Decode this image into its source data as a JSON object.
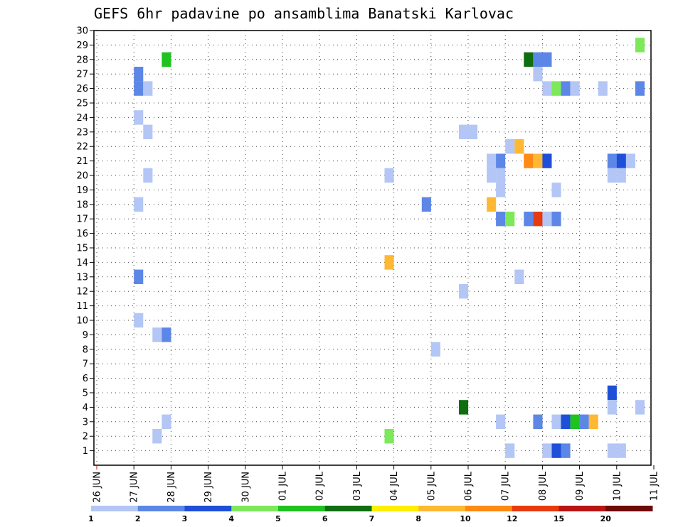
{
  "chart_data": {
    "type": "heatmap",
    "title": "GEFS 6hr padavine po ansamblima Banatski Karlovac",
    "y_ticks": [
      "1",
      "2",
      "3",
      "4",
      "5",
      "6",
      "7",
      "8",
      "9",
      "10",
      "11",
      "12",
      "13",
      "14",
      "15",
      "16",
      "17",
      "18",
      "19",
      "20",
      "21",
      "22",
      "23",
      "24",
      "25",
      "26",
      "27",
      "28",
      "29",
      "30"
    ],
    "x_ticks": [
      "26 JUN",
      "27 JUN",
      "28 JUN",
      "29 JUN",
      "30 JUN",
      "01 JUL",
      "02 JUL",
      "03 JUL",
      "04 JUL",
      "05 JUL",
      "06 JUL",
      "07 JUL",
      "08 JUL",
      "09 JUL",
      "10 JUL",
      "11 JUL"
    ],
    "ylim": [
      0,
      30
    ],
    "grid": true,
    "legend": {
      "placement": "bottom",
      "labels": [
        "1",
        "2",
        "3",
        "4",
        "5",
        "6",
        "7",
        "8",
        "10",
        "12",
        "15",
        "20"
      ],
      "colors": [
        "#b3c6f5",
        "#5c87e6",
        "#1e4fd9",
        "#7de85a",
        "#1fc21f",
        "#0f6e0f",
        "#ffee00",
        "#ffb833",
        "#ff8a14",
        "#e63a0f",
        "#b81414",
        "#6e0a0a"
      ]
    },
    "cell_days": 0.25,
    "cells": [
      {
        "t": "27 JUN 00Z",
        "m": 26,
        "v": 2
      },
      {
        "t": "27 JUN 00Z",
        "m": 27,
        "v": 2
      },
      {
        "t": "27 JUN 06Z",
        "m": 26,
        "v": 1
      },
      {
        "t": "27 JUN 00Z",
        "m": 24,
        "v": 1
      },
      {
        "t": "27 JUN 06Z",
        "m": 23,
        "v": 1
      },
      {
        "t": "27 JUN 06Z",
        "m": 20,
        "v": 1
      },
      {
        "t": "27 JUN 00Z",
        "m": 18,
        "v": 1
      },
      {
        "t": "27 JUN 00Z",
        "m": 13,
        "v": 2
      },
      {
        "t": "27 JUN 00Z",
        "m": 10,
        "v": 1
      },
      {
        "t": "27 JUN 12Z",
        "m": 9,
        "v": 1
      },
      {
        "t": "27 JUN 18Z",
        "m": 9,
        "v": 2
      },
      {
        "t": "27 JUN 18Z",
        "m": 3,
        "v": 1
      },
      {
        "t": "27 JUN 12Z",
        "m": 2,
        "v": 1
      },
      {
        "t": "27 JUN 18Z",
        "m": 28,
        "v": 5
      },
      {
        "t": "03 JUL 18Z",
        "m": 20,
        "v": 1
      },
      {
        "t": "03 JUL 18Z",
        "m": 14,
        "v": 8
      },
      {
        "t": "03 JUL 18Z",
        "m": 2,
        "v": 4
      },
      {
        "t": "04 JUL 18Z",
        "m": 18,
        "v": 2
      },
      {
        "t": "05 JUL 00Z",
        "m": 8,
        "v": 1
      },
      {
        "t": "05 JUL 18Z",
        "m": 23,
        "v": 1
      },
      {
        "t": "06 JUL 00Z",
        "m": 23,
        "v": 1
      },
      {
        "t": "05 JUL 18Z",
        "m": 12,
        "v": 1
      },
      {
        "t": "05 JUL 18Z",
        "m": 4,
        "v": 6
      },
      {
        "t": "06 JUL 12Z",
        "m": 21,
        "v": 1
      },
      {
        "t": "06 JUL 18Z",
        "m": 21,
        "v": 2
      },
      {
        "t": "06 JUL 12Z",
        "m": 20,
        "v": 1
      },
      {
        "t": "06 JUL 18Z",
        "m": 20,
        "v": 1
      },
      {
        "t": "06 JUL 12Z",
        "m": 18,
        "v": 8
      },
      {
        "t": "06 JUL 18Z",
        "m": 19,
        "v": 1
      },
      {
        "t": "06 JUL 18Z",
        "m": 17,
        "v": 2
      },
      {
        "t": "06 JUL 18Z",
        "m": 3,
        "v": 1
      },
      {
        "t": "07 JUL 00Z",
        "m": 22,
        "v": 1
      },
      {
        "t": "07 JUL 06Z",
        "m": 22,
        "v": 8
      },
      {
        "t": "07 JUL 00Z",
        "m": 17,
        "v": 4
      },
      {
        "t": "07 JUL 06Z",
        "m": 13,
        "v": 1
      },
      {
        "t": "07 JUL 00Z",
        "m": 1,
        "v": 1
      },
      {
        "t": "07 JUL 12Z",
        "m": 28,
        "v": 6
      },
      {
        "t": "07 JUL 12Z",
        "m": 21,
        "v": 10
      },
      {
        "t": "07 JUL 18Z",
        "m": 21,
        "v": 8
      },
      {
        "t": "07 JUL 12Z",
        "m": 17,
        "v": 2
      },
      {
        "t": "07 JUL 18Z",
        "m": 17,
        "v": 12
      },
      {
        "t": "07 JUL 18Z",
        "m": 28,
        "v": 2
      },
      {
        "t": "07 JUL 18Z",
        "m": 27,
        "v": 1
      },
      {
        "t": "07 JUL 18Z",
        "m": 3,
        "v": 2
      },
      {
        "t": "08 JUL 00Z",
        "m": 28,
        "v": 2
      },
      {
        "t": "08 JUL 00Z",
        "m": 26,
        "v": 1
      },
      {
        "t": "08 JUL 00Z",
        "m": 21,
        "v": 3
      },
      {
        "t": "08 JUL 00Z",
        "m": 17,
        "v": 1
      },
      {
        "t": "08 JUL 00Z",
        "m": 1,
        "v": 1
      },
      {
        "t": "08 JUL 06Z",
        "m": 26,
        "v": 4
      },
      {
        "t": "08 JUL 06Z",
        "m": 19,
        "v": 1
      },
      {
        "t": "08 JUL 06Z",
        "m": 17,
        "v": 2
      },
      {
        "t": "08 JUL 06Z",
        "m": 3,
        "v": 1
      },
      {
        "t": "08 JUL 06Z",
        "m": 1,
        "v": 3
      },
      {
        "t": "08 JUL 12Z",
        "m": 26,
        "v": 2
      },
      {
        "t": "08 JUL 12Z",
        "m": 3,
        "v": 3
      },
      {
        "t": "08 JUL 12Z",
        "m": 1,
        "v": 2
      },
      {
        "t": "08 JUL 18Z",
        "m": 26,
        "v": 1
      },
      {
        "t": "08 JUL 18Z",
        "m": 3,
        "v": 5
      },
      {
        "t": "09 JUL 00Z",
        "m": 3,
        "v": 2
      },
      {
        "t": "09 JUL 06Z",
        "m": 3,
        "v": 8
      },
      {
        "t": "09 JUL 12Z",
        "m": 26,
        "v": 1
      },
      {
        "t": "09 JUL 18Z",
        "m": 21,
        "v": 2
      },
      {
        "t": "10 JUL 00Z",
        "m": 21,
        "v": 3
      },
      {
        "t": "10 JUL 06Z",
        "m": 21,
        "v": 1
      },
      {
        "t": "09 JUL 18Z",
        "m": 20,
        "v": 1
      },
      {
        "t": "10 JUL 00Z",
        "m": 20,
        "v": 1
      },
      {
        "t": "09 JUL 18Z",
        "m": 5,
        "v": 3
      },
      {
        "t": "09 JUL 18Z",
        "m": 4,
        "v": 1
      },
      {
        "t": "09 JUL 18Z",
        "m": 1,
        "v": 1
      },
      {
        "t": "10 JUL 00Z",
        "m": 1,
        "v": 1
      },
      {
        "t": "10 JUL 12Z",
        "m": 29,
        "v": 4
      },
      {
        "t": "10 JUL 12Z",
        "m": 26,
        "v": 2
      },
      {
        "t": "10 JUL 12Z",
        "m": 4,
        "v": 1
      }
    ]
  }
}
